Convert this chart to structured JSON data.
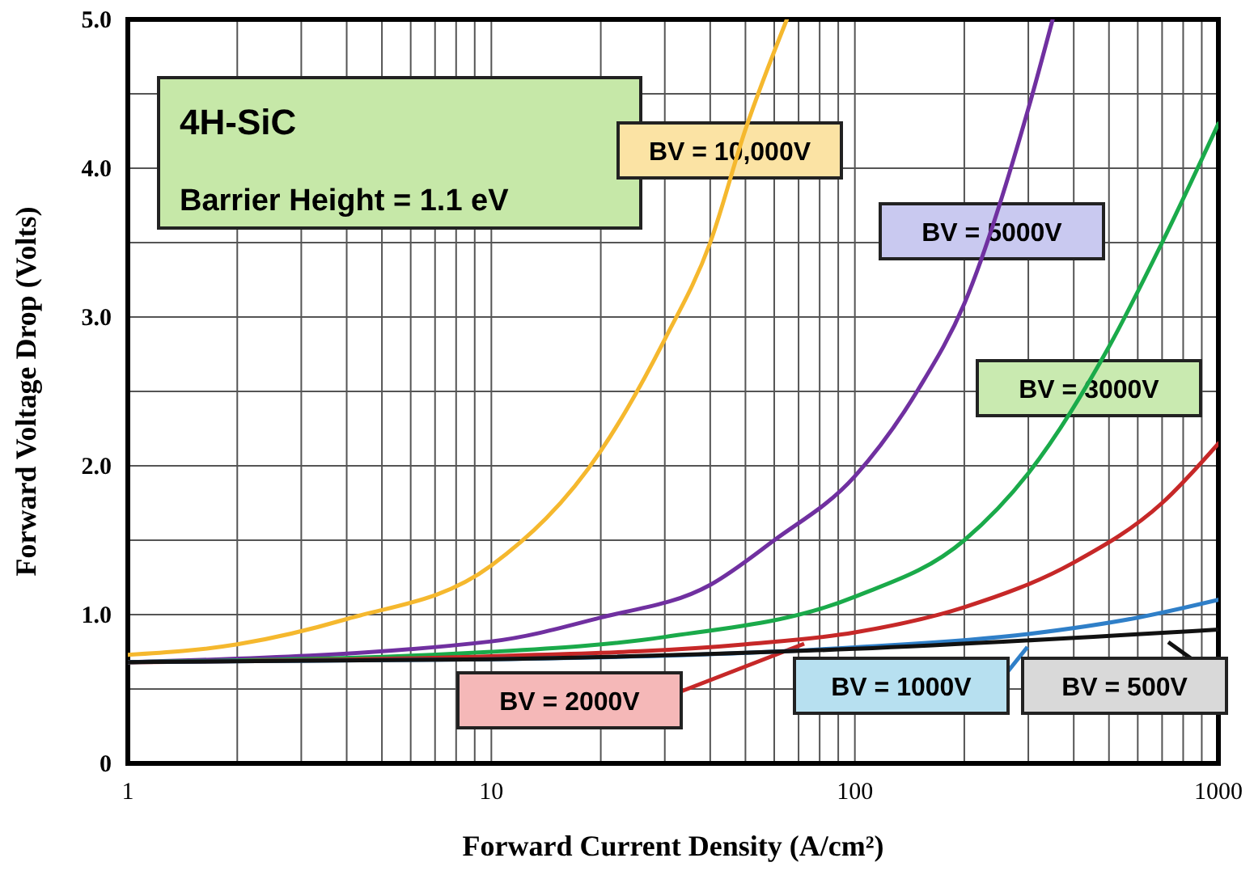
{
  "chart_data": {
    "type": "line",
    "xlabel": "Forward Current Density   (A/cm²)",
    "ylabel": "Forward Voltage Drop  (Volts)",
    "log": "x",
    "grid": true,
    "line_style": "solid",
    "marker": "none",
    "xlim": [
      1,
      1000
    ],
    "ylim": [
      0,
      5
    ],
    "xticks": [
      1,
      {
        "value": 2,
        "label": null
      },
      {
        "value": 3,
        "label": null
      },
      {
        "value": 4,
        "label": null
      },
      {
        "value": 5,
        "label": null
      },
      {
        "value": 6,
        "label": null
      },
      {
        "value": 7,
        "label": null
      },
      {
        "value": 8,
        "label": null
      },
      {
        "value": 9,
        "label": null
      },
      10,
      {
        "value": 20,
        "label": null
      },
      {
        "value": 30,
        "label": null
      },
      {
        "value": 40,
        "label": null
      },
      {
        "value": 50,
        "label": null
      },
      {
        "value": 60,
        "label": null
      },
      {
        "value": 70,
        "label": null
      },
      {
        "value": 80,
        "label": null
      },
      {
        "value": 90,
        "label": null
      },
      100,
      {
        "value": 200,
        "label": null
      },
      {
        "value": 300,
        "label": null
      },
      {
        "value": 400,
        "label": null
      },
      {
        "value": 500,
        "label": null
      },
      {
        "value": 600,
        "label": null
      },
      {
        "value": 700,
        "label": null
      },
      {
        "value": 800,
        "label": null
      },
      {
        "value": 900,
        "label": null
      },
      1000
    ],
    "yticks": [
      0,
      {
        "value": 0.5,
        "label": null
      },
      {
        "value": 1,
        "label": "1.0"
      },
      {
        "value": 1.5,
        "label": null
      },
      {
        "value": 2,
        "label": "2.0"
      },
      {
        "value": 2.5,
        "label": null
      },
      {
        "value": 3,
        "label": "3.0"
      },
      {
        "value": 3.5,
        "label": null
      },
      {
        "value": 4,
        "label": "4.0"
      },
      {
        "value": 4.5,
        "label": null
      },
      {
        "value": 5,
        "label": "5.0"
      }
    ],
    "annotations": [
      "4H-SiC",
      "Barrier Height = 1.1 eV"
    ],
    "series": [
      {
        "name": "BV = 10,000V",
        "color": "#f5b82e",
        "x": [
          1,
          2,
          4,
          10,
          20,
          30,
          40,
          50,
          65
        ],
        "values": [
          0.73,
          0.8,
          0.97,
          1.33,
          2.1,
          2.85,
          3.5,
          4.26,
          5.0
        ]
      },
      {
        "name": "BV = 5000V",
        "color": "#7030a0",
        "x": [
          1,
          10,
          20,
          40,
          60,
          100,
          150,
          200,
          300,
          350
        ],
        "values": [
          0.68,
          0.82,
          0.98,
          1.2,
          1.5,
          1.93,
          2.52,
          3.09,
          4.4,
          5.0
        ]
      },
      {
        "name": "BV = 3000V",
        "color": "#1aaa4a",
        "x": [
          1,
          10,
          30,
          100,
          200,
          300,
          500,
          700,
          1000
        ],
        "values": [
          0.68,
          0.75,
          0.85,
          1.12,
          1.5,
          1.95,
          2.8,
          3.5,
          4.3
        ]
      },
      {
        "name": "BV = 2000V",
        "color": "#c62828",
        "x": [
          1,
          10,
          50,
          100,
          200,
          400,
          700,
          1000
        ],
        "values": [
          0.68,
          0.72,
          0.8,
          0.88,
          1.05,
          1.35,
          1.75,
          2.15
        ]
      },
      {
        "name": "BV = 1000V",
        "color": "#2f7fc8",
        "x": [
          1,
          10,
          100,
          300,
          600,
          1000
        ],
        "values": [
          0.68,
          0.7,
          0.78,
          0.87,
          0.98,
          1.1
        ]
      },
      {
        "name": "BV = 500V",
        "color": "#111111",
        "x": [
          1,
          10,
          100,
          1000
        ],
        "values": [
          0.68,
          0.7,
          0.77,
          0.9
        ]
      }
    ]
  }
}
